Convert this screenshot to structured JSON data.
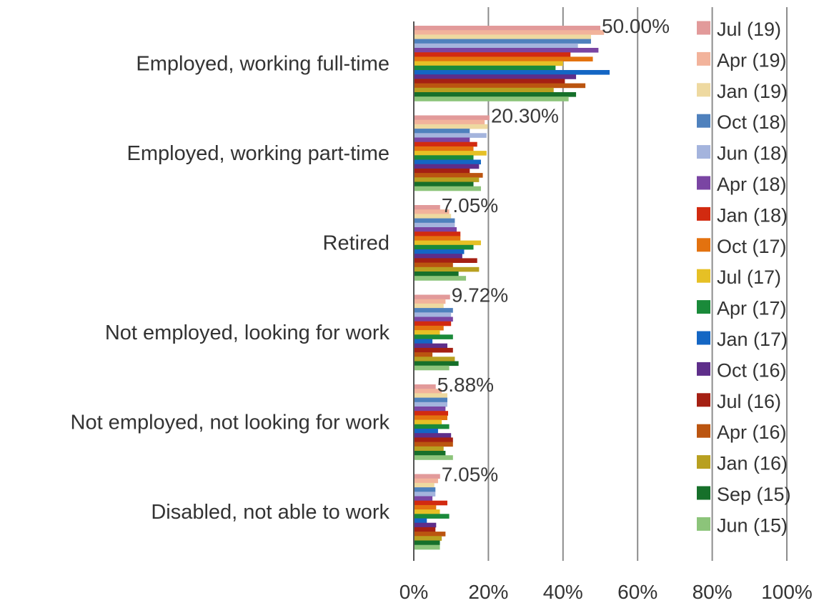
{
  "chart_data": {
    "type": "bar",
    "orientation": "horizontal",
    "title": "",
    "xlabel": "",
    "ylabel": "",
    "xlim": [
      0,
      100
    ],
    "x_ticks": [
      "0%",
      "20%",
      "40%",
      "60%",
      "80%",
      "100%"
    ],
    "grid": true,
    "legend_position": "right",
    "categories": [
      "Employed, working full-time",
      "Employed, working part-time",
      "Retired",
      "Not employed, looking for work",
      "Not employed, not looking for work",
      "Disabled, not able to work"
    ],
    "data_labels": [
      "50.00%",
      "20.30%",
      "7.05%",
      "9.72%",
      "5.88%",
      "7.05%"
    ],
    "series": [
      {
        "name": "Jul (19)",
        "color": "#e29a9a",
        "values": [
          50.0,
          20.3,
          7.05,
          9.72,
          5.88,
          7.05
        ]
      },
      {
        "name": "Apr (19)",
        "color": "#f2b39b",
        "values": [
          51.0,
          19.0,
          9.5,
          8.5,
          7.5,
          6.5
        ]
      },
      {
        "name": "Jan (19)",
        "color": "#eed9a0",
        "values": [
          47.5,
          19.8,
          10.0,
          8.0,
          9.0,
          5.5
        ]
      },
      {
        "name": "Oct (18)",
        "color": "#4f81bd",
        "values": [
          47.5,
          15.0,
          11.0,
          10.5,
          9.0,
          5.8
        ]
      },
      {
        "name": "Jun (18)",
        "color": "#a4b4dd",
        "values": [
          44.0,
          19.5,
          11.0,
          10.0,
          9.0,
          5.8
        ]
      },
      {
        "name": "Apr (18)",
        "color": "#7a45a3",
        "values": [
          49.5,
          15.0,
          11.5,
          10.5,
          8.5,
          5.0
        ]
      },
      {
        "name": "Jan (18)",
        "color": "#d22a10",
        "values": [
          42.0,
          17.0,
          12.5,
          10.0,
          9.2,
          9.0
        ]
      },
      {
        "name": "Oct (17)",
        "color": "#e3720f",
        "values": [
          48.0,
          16.0,
          12.5,
          8.0,
          9.0,
          6.0
        ]
      },
      {
        "name": "Jul (17)",
        "color": "#e6c025",
        "values": [
          40.0,
          19.5,
          18.0,
          7.0,
          7.5,
          7.0
        ]
      },
      {
        "name": "Apr (17)",
        "color": "#1a8a3a",
        "values": [
          38.0,
          16.0,
          16.0,
          10.5,
          9.5,
          9.5
        ]
      },
      {
        "name": "Jan (17)",
        "color": "#1466c4",
        "values": [
          52.5,
          18.0,
          13.5,
          5.0,
          6.5,
          3.5
        ]
      },
      {
        "name": "Oct (16)",
        "color": "#5e2e8a",
        "values": [
          43.5,
          17.5,
          13.0,
          9.0,
          10.0,
          6.0
        ]
      },
      {
        "name": "Jul (16)",
        "color": "#a52013",
        "values": [
          40.5,
          15.0,
          17.0,
          10.5,
          10.5,
          5.8
        ]
      },
      {
        "name": "Apr (16)",
        "color": "#bb5510",
        "values": [
          46.0,
          18.5,
          10.5,
          5.0,
          10.5,
          8.5
        ]
      },
      {
        "name": "Jan (16)",
        "color": "#b8a020",
        "values": [
          37.5,
          17.5,
          17.5,
          11.0,
          8.0,
          7.5
        ]
      },
      {
        "name": "Sep (15)",
        "color": "#16702a",
        "values": [
          43.5,
          16.0,
          12.0,
          12.0,
          8.5,
          7.0
        ]
      },
      {
        "name": "Jun (15)",
        "color": "#8cc47a",
        "values": [
          41.5,
          18.0,
          14.0,
          9.5,
          10.5,
          7.0
        ]
      }
    ]
  }
}
